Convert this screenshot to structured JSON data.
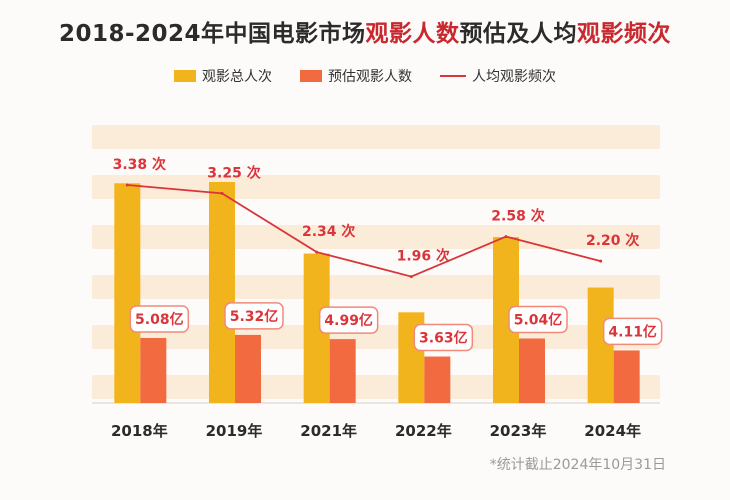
{
  "title": {
    "prefix": "2018-2024年中国电影市场",
    "highlight1": "观影人数",
    "middle": "预估及人均",
    "highlight2": "观影频次"
  },
  "legend": {
    "total": "观影总人次",
    "estimated": "预估观影人数",
    "freq": "人均观影频次"
  },
  "colors": {
    "total": "#f2b41c",
    "estimated": "#f26a3f",
    "line": "#d9353a",
    "band": "#fbecd9",
    "label_text": "#d9353a"
  },
  "footnote": "*统计截止2024年10月31日",
  "chart_data": {
    "type": "bar",
    "categories": [
      "2018年",
      "2019年",
      "2021年",
      "2022年",
      "2023年",
      "2024年"
    ],
    "series": [
      {
        "name": "观影总人次",
        "values": [
          17.2,
          17.3,
          11.7,
          7.1,
          12.99,
          9.04
        ]
      },
      {
        "name": "预估观影人数",
        "values": [
          5.08,
          5.32,
          4.99,
          3.63,
          5.04,
          4.11
        ],
        "labels": [
          "5.08亿",
          "5.32亿",
          "4.99亿",
          "3.63亿",
          "5.04亿",
          "4.11亿"
        ]
      },
      {
        "name": "人均观影频次",
        "type": "line",
        "values": [
          3.38,
          3.25,
          2.34,
          1.96,
          2.58,
          2.2
        ],
        "labels": [
          "3.38 次",
          "3.25 次",
          "2.34 次",
          "1.96 次",
          "2.58 次",
          "2.20 次"
        ]
      }
    ],
    "bar_ylim": [
      0,
      17.5
    ],
    "line_ylim": [
      0,
      4.5
    ]
  }
}
